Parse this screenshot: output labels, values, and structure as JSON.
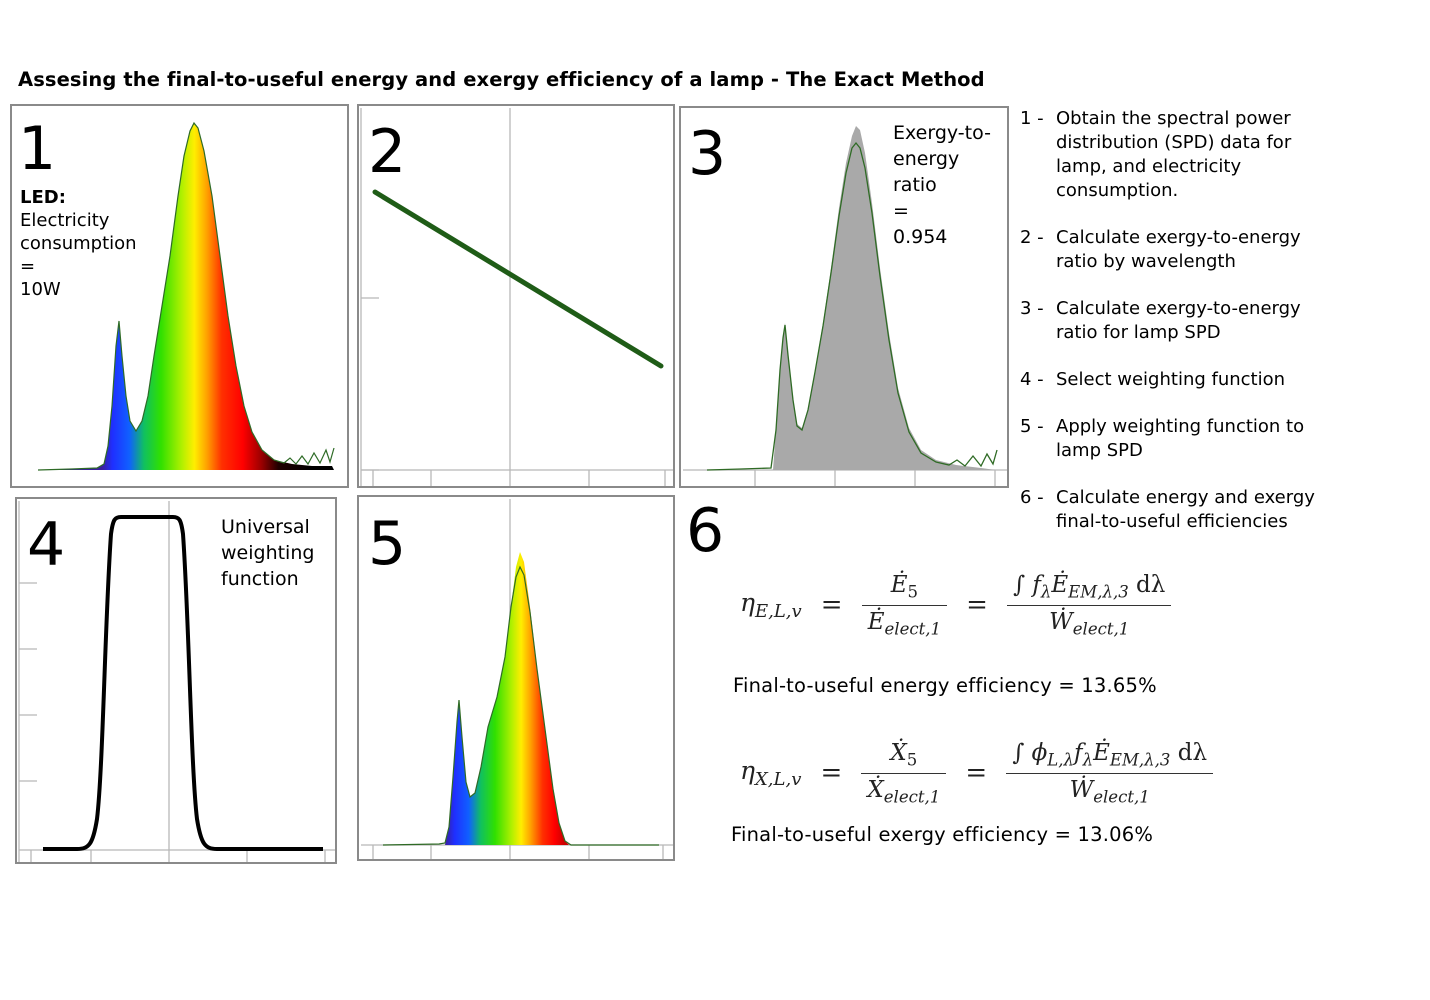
{
  "title": "Assesing the final-to-useful energy and exergy efficiency of a lamp - The Exact Method",
  "panels": {
    "p1": {
      "number": "1",
      "label_bold": "LED:",
      "lines": [
        "Electricity",
        "consumption",
        "=",
        "10W"
      ]
    },
    "p2": {
      "number": "2"
    },
    "p3": {
      "number": "3",
      "lines": [
        "Exergy-to-",
        "energy",
        "ratio",
        "=",
        "0.954"
      ]
    },
    "p4": {
      "number": "4",
      "lines": [
        "Universal",
        "weighting",
        "function"
      ]
    },
    "p5": {
      "number": "5"
    },
    "p6": {
      "number": "6"
    }
  },
  "steps": [
    {
      "num": "1 -",
      "text": "Obtain the spectral power distribution (SPD) data for lamp, and electricity consumption."
    },
    {
      "num": "2 -",
      "text": "Calculate exergy-to-energy ratio by wavelength"
    },
    {
      "num": "3 -",
      "text": "Calculate exergy-to-energy ratio for lamp SPD"
    },
    {
      "num": "4 -",
      "text": "Select weighting function"
    },
    {
      "num": "5 -",
      "text": "Apply weighting function to lamp SPD"
    },
    {
      "num": "6 -",
      "text": "Calculate energy and exergy final-to-useful efficiencies"
    }
  ],
  "results": {
    "energy": "Final-to-useful energy efficiency = 13.65%",
    "exergy": "Final-to-useful exergy efficiency = 13.06%"
  },
  "colors": {
    "panel_border": "#8a8a8a",
    "ratio_line": "#1f5c17",
    "spd_fill": "#a9a9a9",
    "spd_line": "#2f6b25"
  }
}
